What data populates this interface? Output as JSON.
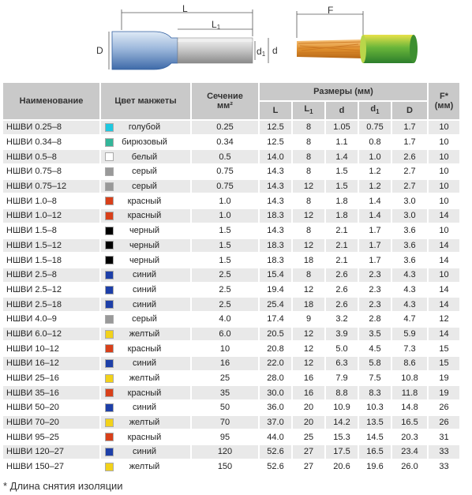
{
  "diagram": {
    "labels": {
      "L": "L",
      "L1": "L",
      "L1_sub": "1",
      "D": "D",
      "d1": "d",
      "d1_sub": "1",
      "d": "d",
      "F": "F"
    }
  },
  "table": {
    "headers": {
      "name": "Наименование",
      "color": "Цвет манжеты",
      "section": "Сечение",
      "section_unit": "мм²",
      "dims": "Размеры (мм)",
      "F": "F*",
      "F_unit": "(мм)",
      "L": "L",
      "L1": "L",
      "L1_sub": "1",
      "d": "d",
      "d1": "d",
      "d1_sub": "1",
      "D": "D"
    },
    "rows": [
      {
        "name": "НШВИ 0.25–8",
        "color": "голубой",
        "swatch": "#1ec8e0",
        "section": "0.25",
        "L": "12.5",
        "L1": "8",
        "d": "1.05",
        "d1": "0.75",
        "D": "1.7",
        "F": "10"
      },
      {
        "name": "НШВИ 0.34–8",
        "color": "бирюзовый",
        "swatch": "#33b69a",
        "section": "0.34",
        "L": "12.5",
        "L1": "8",
        "d": "1.1",
        "d1": "0.8",
        "D": "1.7",
        "F": "10"
      },
      {
        "name": "НШВИ 0.5–8",
        "color": "белый",
        "swatch": "#ffffff",
        "section": "0.5",
        "L": "14.0",
        "L1": "8",
        "d": "1.4",
        "d1": "1.0",
        "D": "2.6",
        "F": "10"
      },
      {
        "name": "НШВИ 0.75–8",
        "color": "серый",
        "swatch": "#999999",
        "section": "0.75",
        "L": "14.3",
        "L1": "8",
        "d": "1.5",
        "d1": "1.2",
        "D": "2.7",
        "F": "10"
      },
      {
        "name": "НШВИ 0.75–12",
        "color": "серый",
        "swatch": "#999999",
        "section": "0.75",
        "L": "14.3",
        "L1": "12",
        "d": "1.5",
        "d1": "1.2",
        "D": "2.7",
        "F": "10"
      },
      {
        "name": "НШВИ 1.0–8",
        "color": "красный",
        "swatch": "#d8401a",
        "section": "1.0",
        "L": "14.3",
        "L1": "8",
        "d": "1.8",
        "d1": "1.4",
        "D": "3.0",
        "F": "10"
      },
      {
        "name": "НШВИ 1.0–12",
        "color": "красный",
        "swatch": "#d8401a",
        "section": "1.0",
        "L": "18.3",
        "L1": "12",
        "d": "1.8",
        "d1": "1.4",
        "D": "3.0",
        "F": "14"
      },
      {
        "name": "НШВИ 1.5–8",
        "color": "черный",
        "swatch": "#000000",
        "section": "1.5",
        "L": "14.3",
        "L1": "8",
        "d": "2.1",
        "d1": "1.7",
        "D": "3.6",
        "F": "10"
      },
      {
        "name": "НШВИ 1.5–12",
        "color": "черный",
        "swatch": "#000000",
        "section": "1.5",
        "L": "18.3",
        "L1": "12",
        "d": "2.1",
        "d1": "1.7",
        "D": "3.6",
        "F": "14"
      },
      {
        "name": "НШВИ 1.5–18",
        "color": "черный",
        "swatch": "#000000",
        "section": "1.5",
        "L": "18.3",
        "L1": "18",
        "d": "2.1",
        "d1": "1.7",
        "D": "3.6",
        "F": "14"
      },
      {
        "name": "НШВИ 2.5–8",
        "color": "синий",
        "swatch": "#1d3fa8",
        "section": "2.5",
        "L": "15.4",
        "L1": "8",
        "d": "2.6",
        "d1": "2.3",
        "D": "4.3",
        "F": "10"
      },
      {
        "name": "НШВИ 2.5–12",
        "color": "синий",
        "swatch": "#1d3fa8",
        "section": "2.5",
        "L": "19.4",
        "L1": "12",
        "d": "2.6",
        "d1": "2.3",
        "D": "4.3",
        "F": "14"
      },
      {
        "name": "НШВИ 2.5–18",
        "color": "синий",
        "swatch": "#1d3fa8",
        "section": "2.5",
        "L": "25.4",
        "L1": "18",
        "d": "2.6",
        "d1": "2.3",
        "D": "4.3",
        "F": "14"
      },
      {
        "name": "НШВИ 4.0–9",
        "color": "серый",
        "swatch": "#999999",
        "section": "4.0",
        "L": "17.4",
        "L1": "9",
        "d": "3.2",
        "d1": "2.8",
        "D": "4.7",
        "F": "12"
      },
      {
        "name": "НШВИ 6.0–12",
        "color": "желтый",
        "swatch": "#f2d21a",
        "section": "6.0",
        "L": "20.5",
        "L1": "12",
        "d": "3.9",
        "d1": "3.5",
        "D": "5.9",
        "F": "14"
      },
      {
        "name": "НШВИ 10–12",
        "color": "красный",
        "swatch": "#d8401a",
        "section": "10",
        "L": "20.8",
        "L1": "12",
        "d": "5.0",
        "d1": "4.5",
        "D": "7.3",
        "F": "15"
      },
      {
        "name": "НШВИ 16–12",
        "color": "синий",
        "swatch": "#1d3fa8",
        "section": "16",
        "L": "22.0",
        "L1": "12",
        "d": "6.3",
        "d1": "5.8",
        "D": "8.6",
        "F": "15"
      },
      {
        "name": "НШВИ 25–16",
        "color": "желтый",
        "swatch": "#f2d21a",
        "section": "25",
        "L": "28.0",
        "L1": "16",
        "d": "7.9",
        "d1": "7.5",
        "D": "10.8",
        "F": "19"
      },
      {
        "name": "НШВИ 35–16",
        "color": "красный",
        "swatch": "#d8401a",
        "section": "35",
        "L": "30.0",
        "L1": "16",
        "d": "8.8",
        "d1": "8.3",
        "D": "11.8",
        "F": "19"
      },
      {
        "name": "НШВИ 50–20",
        "color": "синий",
        "swatch": "#1d3fa8",
        "section": "50",
        "L": "36.0",
        "L1": "20",
        "d": "10.9",
        "d1": "10.3",
        "D": "14.8",
        "F": "26"
      },
      {
        "name": "НШВИ 70–20",
        "color": "желтый",
        "swatch": "#f2d21a",
        "section": "70",
        "L": "37.0",
        "L1": "20",
        "d": "14.2",
        "d1": "13.5",
        "D": "16.5",
        "F": "26"
      },
      {
        "name": "НШВИ 95–25",
        "color": "красный",
        "swatch": "#d8401a",
        "section": "95",
        "L": "44.0",
        "L1": "25",
        "d": "15.3",
        "d1": "14.5",
        "D": "20.3",
        "F": "31"
      },
      {
        "name": "НШВИ 120–27",
        "color": "синий",
        "swatch": "#1d3fa8",
        "section": "120",
        "L": "52.6",
        "L1": "27",
        "d": "17.5",
        "d1": "16.5",
        "D": "23.4",
        "F": "33"
      },
      {
        "name": "НШВИ 150–27",
        "color": "желтый",
        "swatch": "#f2d21a",
        "section": "150",
        "L": "52.6",
        "L1": "27",
        "d": "20.6",
        "d1": "19.6",
        "D": "26.0",
        "F": "33"
      }
    ]
  },
  "footnote": "* Длина снятия изоляции"
}
